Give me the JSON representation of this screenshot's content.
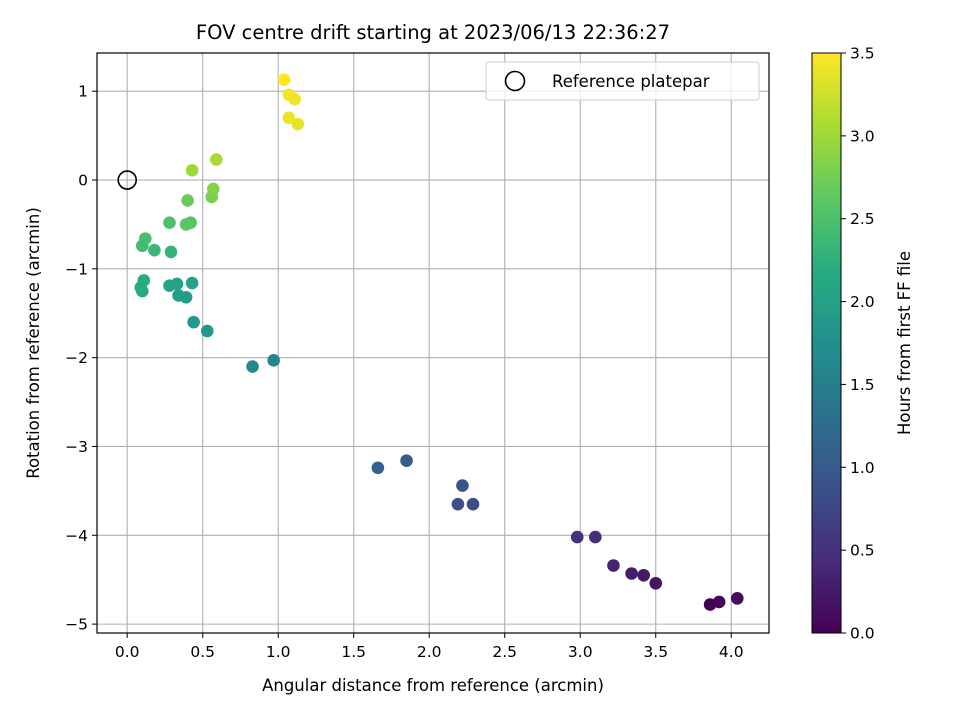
{
  "chart_data": {
    "type": "scatter",
    "title": "FOV centre drift starting at 2023/06/13 22:36:27",
    "xlabel": "Angular distance from reference (arcmin)",
    "ylabel": "Rotation from reference (arcmin)",
    "xlim": [
      -0.2,
      4.25
    ],
    "ylim": [
      -5.1,
      1.43
    ],
    "xticks": [
      0.0,
      0.5,
      1.0,
      1.5,
      2.0,
      2.5,
      3.0,
      3.5,
      4.0
    ],
    "xtick_labels": [
      "0.0",
      "0.5",
      "1.0",
      "1.5",
      "2.0",
      "2.5",
      "3.0",
      "3.5",
      "4.0"
    ],
    "yticks": [
      1,
      0,
      -1,
      -2,
      -3,
      -4,
      -5
    ],
    "ytick_labels": [
      "1",
      "0",
      "−1",
      "−2",
      "−3",
      "−4",
      "−5"
    ],
    "grid": true,
    "legend": {
      "position": "top-right",
      "entries": [
        "Reference platepar"
      ]
    },
    "reference_point": {
      "x": 0.0,
      "y": 0.0,
      "label": "Reference platepar"
    },
    "colorbar": {
      "label": "Hours from first FF file",
      "colormap": "viridis",
      "range": [
        0.0,
        3.5
      ],
      "ticks": [
        0.0,
        0.5,
        1.0,
        1.5,
        2.0,
        2.5,
        3.0,
        3.5
      ],
      "tick_labels": [
        "0.0",
        "0.5",
        "1.0",
        "1.5",
        "2.0",
        "2.5",
        "3.0",
        "3.5"
      ]
    },
    "points": [
      {
        "x": 3.86,
        "y": -4.78,
        "hours": 0.0
      },
      {
        "x": 3.92,
        "y": -4.75,
        "hours": 0.05
      },
      {
        "x": 4.04,
        "y": -4.71,
        "hours": 0.1
      },
      {
        "x": 3.5,
        "y": -4.54,
        "hours": 0.2
      },
      {
        "x": 3.42,
        "y": -4.45,
        "hours": 0.25
      },
      {
        "x": 3.34,
        "y": -4.43,
        "hours": 0.3
      },
      {
        "x": 3.22,
        "y": -4.34,
        "hours": 0.35
      },
      {
        "x": 3.1,
        "y": -4.02,
        "hours": 0.45
      },
      {
        "x": 2.98,
        "y": -4.02,
        "hours": 0.5
      },
      {
        "x": 2.29,
        "y": -3.65,
        "hours": 0.8
      },
      {
        "x": 2.19,
        "y": -3.65,
        "hours": 0.85
      },
      {
        "x": 2.22,
        "y": -3.44,
        "hours": 0.9
      },
      {
        "x": 1.85,
        "y": -3.16,
        "hours": 1.05
      },
      {
        "x": 1.66,
        "y": -3.24,
        "hours": 1.1
      },
      {
        "x": 0.97,
        "y": -2.03,
        "hours": 1.6
      },
      {
        "x": 0.83,
        "y": -2.1,
        "hours": 1.65
      },
      {
        "x": 0.53,
        "y": -1.7,
        "hours": 1.85
      },
      {
        "x": 0.44,
        "y": -1.6,
        "hours": 1.9
      },
      {
        "x": 0.43,
        "y": -1.16,
        "hours": 2.0
      },
      {
        "x": 0.39,
        "y": -1.32,
        "hours": 1.95
      },
      {
        "x": 0.33,
        "y": -1.17,
        "hours": 2.0
      },
      {
        "x": 0.34,
        "y": -1.3,
        "hours": 1.98
      },
      {
        "x": 0.28,
        "y": -1.19,
        "hours": 2.05
      },
      {
        "x": 0.1,
        "y": -1.25,
        "hours": 2.1
      },
      {
        "x": 0.11,
        "y": -1.13,
        "hours": 2.2
      },
      {
        "x": 0.09,
        "y": -1.21,
        "hours": 2.15
      },
      {
        "x": 0.29,
        "y": -0.81,
        "hours": 2.3
      },
      {
        "x": 0.18,
        "y": -0.79,
        "hours": 2.35
      },
      {
        "x": 0.12,
        "y": -0.66,
        "hours": 2.45
      },
      {
        "x": 0.1,
        "y": -0.74,
        "hours": 2.4
      },
      {
        "x": 0.28,
        "y": -0.48,
        "hours": 2.5
      },
      {
        "x": 0.42,
        "y": -0.48,
        "hours": 2.55
      },
      {
        "x": 0.39,
        "y": -0.5,
        "hours": 2.6
      },
      {
        "x": 0.4,
        "y": -0.23,
        "hours": 2.7
      },
      {
        "x": 0.56,
        "y": -0.19,
        "hours": 2.8
      },
      {
        "x": 0.57,
        "y": -0.1,
        "hours": 2.85
      },
      {
        "x": 0.43,
        "y": 0.11,
        "hours": 3.0
      },
      {
        "x": 0.59,
        "y": 0.23,
        "hours": 3.05
      },
      {
        "x": 1.04,
        "y": 1.13,
        "hours": 3.5
      },
      {
        "x": 1.07,
        "y": 0.96,
        "hours": 3.45
      },
      {
        "x": 1.11,
        "y": 0.91,
        "hours": 3.42
      },
      {
        "x": 1.07,
        "y": 0.7,
        "hours": 3.4
      },
      {
        "x": 1.13,
        "y": 0.63,
        "hours": 3.38
      }
    ]
  }
}
